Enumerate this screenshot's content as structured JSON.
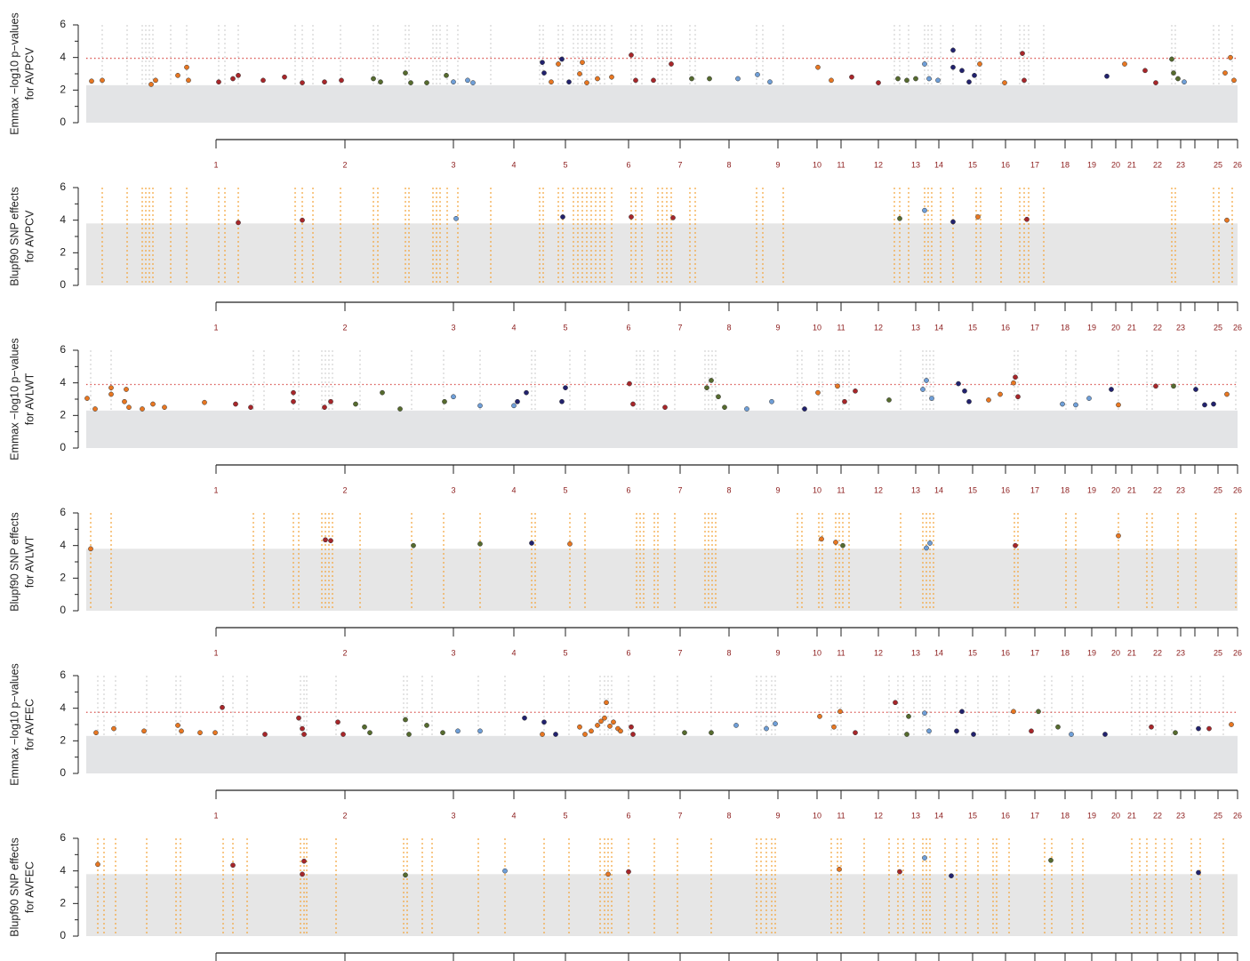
{
  "chromosome_axis": {
    "positions": [
      146,
      291,
      413,
      481,
      539,
      610,
      668,
      723,
      778,
      822,
      849,
      891,
      933,
      959,
      997,
      1034,
      1067,
      1101,
      1131,
      1158,
      1176,
      1205,
      1231,
      1247,
      1273,
      1295
    ],
    "labels": [
      "1",
      "2",
      "3",
      "4",
      "5",
      "6",
      "7",
      "8",
      "9",
      "10",
      "11",
      "12",
      "13",
      "14",
      "15",
      "16",
      "17",
      "18",
      "19",
      "20",
      "21",
      "22",
      "23",
      null,
      "25",
      "26"
    ]
  },
  "chart_data": [
    {
      "type": "scatter",
      "ylabel": [
        "Emmax −log10 p−values",
        "for AVPCV"
      ],
      "xlim": [
        0,
        1295
      ],
      "ylim": [
        0,
        6
      ],
      "yticks": [
        0,
        2,
        4,
        6
      ],
      "threshold": 3.95,
      "threshold_color": "#d9534f",
      "background_top": 2.3,
      "background_color": "#e3e4e6",
      "guide_color": "#cfcfcf",
      "series": [
        {
          "color": "#e87722",
          "x": [
            6,
            18,
            73,
            78,
            103,
            113,
            115,
            523,
            531,
            558,
            555,
            563,
            575,
            591,
            823,
            838,
            1005,
            1033,
            1168,
            1281,
            1287,
            1291
          ],
          "values": [
            2.55,
            2.6,
            2.35,
            2.6,
            2.9,
            3.4,
            2.6,
            2.5,
            3.6,
            3.7,
            3.0,
            2.45,
            2.7,
            2.8,
            3.4,
            2.6,
            3.6,
            2.45,
            3.6,
            3.05,
            4.0,
            2.6
          ]
        },
        {
          "color": "#a8262a",
          "x": [
            149,
            165,
            171,
            199,
            223,
            243,
            268,
            287,
            613,
            618,
            638,
            658,
            861,
            891,
            1053,
            1055,
            1191,
            1203
          ],
          "values": [
            2.5,
            2.7,
            2.9,
            2.6,
            2.8,
            2.45,
            2.5,
            2.6,
            4.15,
            2.6,
            2.6,
            3.6,
            2.8,
            2.45,
            4.25,
            2.6,
            3.2,
            2.45
          ]
        },
        {
          "color": "#566b2e",
          "x": [
            323,
            331,
            359,
            365,
            383,
            405,
            681,
            701,
            913,
            923,
            933,
            1223,
            1221,
            1228
          ],
          "values": [
            2.7,
            2.5,
            3.05,
            2.45,
            2.45,
            2.9,
            2.7,
            2.7,
            2.7,
            2.6,
            2.7,
            3.05,
            3.9,
            2.7
          ]
        },
        {
          "color": "#6f9fd8",
          "x": [
            413,
            429,
            435,
            733,
            755,
            769,
            943,
            948,
            958,
            1235
          ],
          "values": [
            2.5,
            2.6,
            2.45,
            2.7,
            2.95,
            2.5,
            3.6,
            2.7,
            2.6,
            2.5
          ]
        },
        {
          "color": "#22226e",
          "x": [
            513,
            515,
            535,
            543,
            975,
            975,
            985,
            993,
            999,
            1148
          ],
          "values": [
            3.7,
            3.05,
            3.9,
            2.5,
            4.45,
            3.4,
            3.2,
            2.5,
            2.9,
            2.85
          ]
        }
      ]
    },
    {
      "type": "scatter",
      "ylabel": [
        "Blupf90 SNP effects",
        "for AVPCV"
      ],
      "xlim": [
        0,
        1295
      ],
      "ylim": [
        0,
        6
      ],
      "yticks": [
        0,
        2,
        4,
        6
      ],
      "background_top": 3.8,
      "background_color": "#e6e6e6",
      "highlight_color": "#f2a33a",
      "highlight_x": [
        18,
        46,
        63,
        67,
        71,
        75,
        95,
        113,
        149,
        156,
        171,
        235,
        243,
        255,
        286,
        323,
        328,
        359,
        363,
        390,
        394,
        398,
        406,
        418,
        455,
        510,
        514,
        531,
        536,
        548,
        553,
        558,
        563,
        568,
        573,
        578,
        583,
        591,
        613,
        618,
        625,
        643,
        648,
        653,
        658,
        679,
        685,
        754,
        761,
        784,
        909,
        915,
        925,
        943,
        947,
        951,
        961,
        975,
        1001,
        1006,
        1029,
        1050,
        1055,
        1060,
        1077,
        1221,
        1225,
        1268,
        1274,
        1289
      ],
      "series": [
        {
          "color": "#e87722",
          "x": [
            1003,
            1283
          ],
          "values": [
            4.2,
            4.0
          ]
        },
        {
          "color": "#a8262a",
          "x": [
            171,
            243,
            613,
            660,
            1058
          ],
          "values": [
            3.85,
            4.0,
            4.2,
            4.15,
            4.05
          ]
        },
        {
          "color": "#566b2e",
          "x": [
            915
          ],
          "values": [
            4.1
          ]
        },
        {
          "color": "#6f9fd8",
          "x": [
            416,
            943
          ],
          "values": [
            4.1,
            4.6
          ]
        },
        {
          "color": "#22226e",
          "x": [
            536,
            975
          ],
          "values": [
            4.2,
            3.9
          ]
        }
      ]
    },
    {
      "type": "scatter",
      "ylabel": [
        "Emmax −log10 p−values",
        "for AVLWT"
      ],
      "xlim": [
        0,
        1295
      ],
      "ylim": [
        0,
        6
      ],
      "yticks": [
        0,
        2,
        4,
        6
      ],
      "threshold": 3.9,
      "threshold_color": "#d9534f",
      "background_top": 2.3,
      "background_color": "#e3e4e6",
      "guide_color": "#cfcfcf",
      "series": [
        {
          "color": "#e87722",
          "x": [
            1,
            10,
            28,
            28,
            43,
            45,
            48,
            63,
            75,
            88,
            133,
            823,
            845,
            1015,
            1028,
            1043,
            1161,
            1283
          ],
          "values": [
            3.05,
            2.4,
            3.7,
            3.3,
            2.85,
            3.6,
            2.5,
            2.4,
            2.7,
            2.5,
            2.8,
            3.4,
            3.8,
            2.95,
            3.3,
            4.0,
            2.65,
            3.3
          ]
        },
        {
          "color": "#a8262a",
          "x": [
            168,
            185,
            233,
            233,
            268,
            275,
            611,
            615,
            651,
            853,
            865,
            1045,
            1048,
            1203
          ],
          "values": [
            2.7,
            2.5,
            3.4,
            2.85,
            2.5,
            2.85,
            3.95,
            2.7,
            2.5,
            2.85,
            3.5,
            4.35,
            3.15,
            3.8
          ]
        },
        {
          "color": "#566b2e",
          "x": [
            303,
            333,
            353,
            403,
            698,
            703,
            711,
            718,
            903,
            1223
          ],
          "values": [
            2.7,
            3.4,
            2.4,
            2.85,
            3.7,
            4.15,
            3.15,
            2.5,
            2.95,
            3.8
          ]
        },
        {
          "color": "#6f9fd8",
          "x": [
            413,
            443,
            481,
            743,
            771,
            941,
            945,
            951,
            1098,
            1113,
            1128
          ],
          "values": [
            3.15,
            2.6,
            2.6,
            2.4,
            2.85,
            3.6,
            4.15,
            3.05,
            2.7,
            2.65,
            3.05
          ]
        },
        {
          "color": "#22226e",
          "x": [
            485,
            495,
            539,
            535,
            808,
            981,
            988,
            993,
            1153,
            1248,
            1258,
            1268
          ],
          "values": [
            2.85,
            3.4,
            3.7,
            2.85,
            2.4,
            3.95,
            3.5,
            2.85,
            3.6,
            3.6,
            2.65,
            2.7
          ]
        }
      ]
    },
    {
      "type": "scatter",
      "ylabel": [
        "Blupf90 SNP effects",
        "for AVLWT"
      ],
      "xlim": [
        0,
        1295
      ],
      "ylim": [
        0,
        6
      ],
      "yticks": [
        0,
        2,
        4,
        6
      ],
      "background_top": 3.8,
      "background_color": "#e6e6e6",
      "highlight_color": "#f2a33a",
      "highlight_x": [
        5,
        28,
        188,
        200,
        233,
        239,
        265,
        269,
        273,
        277,
        308,
        366,
        402,
        443,
        501,
        505,
        544,
        561,
        619,
        623,
        627,
        639,
        643,
        662,
        696,
        700,
        704,
        708,
        800,
        805,
        824,
        828,
        843,
        847,
        851,
        858,
        916,
        941,
        945,
        949,
        953,
        1044,
        1048,
        1102,
        1113,
        1161,
        1193,
        1199,
        1228,
        1248,
        1293
      ],
      "series": [
        {
          "color": "#e87722",
          "x": [
            5,
            544,
            827,
            843,
            1161
          ],
          "values": [
            3.8,
            4.1,
            4.4,
            4.2,
            4.6
          ]
        },
        {
          "color": "#a8262a",
          "x": [
            269,
            275,
            1045
          ],
          "values": [
            4.35,
            4.3,
            4.0
          ]
        },
        {
          "color": "#566b2e",
          "x": [
            368,
            443,
            851
          ],
          "values": [
            4.0,
            4.1,
            4.0
          ]
        },
        {
          "color": "#6f9fd8",
          "x": [
            949,
            945
          ],
          "values": [
            4.15,
            3.85
          ]
        },
        {
          "color": "#22226e",
          "x": [
            501
          ],
          "values": [
            4.15
          ]
        }
      ]
    },
    {
      "type": "scatter",
      "ylabel": [
        "Emmax −log10 p−values",
        "for AVFEC"
      ],
      "xlim": [
        0,
        1295
      ],
      "ylim": [
        0,
        6
      ],
      "yticks": [
        0,
        2,
        4,
        6
      ],
      "threshold": 3.75,
      "threshold_color": "#d9534f",
      "background_top": 2.3,
      "background_color": "#e3e4e6",
      "guide_color": "#cfcfcf",
      "series": [
        {
          "color": "#e87722",
          "x": [
            11,
            31,
            65,
            103,
            107,
            128,
            145,
            513,
            555,
            561,
            575,
            583,
            585,
            593,
            598,
            825,
            841,
            848,
            1043,
            1288,
            568,
            579,
            589,
            601
          ],
          "values": [
            2.5,
            2.75,
            2.6,
            2.95,
            2.6,
            2.5,
            2.5,
            2.4,
            2.85,
            2.4,
            2.95,
            3.4,
            4.35,
            3.15,
            2.75,
            3.5,
            2.85,
            3.8,
            3.8,
            3.0,
            2.6,
            3.2,
            2.9,
            2.6
          ]
        },
        {
          "color": "#a8262a",
          "x": [
            153,
            201,
            239,
            243,
            245,
            283,
            289,
            613,
            615,
            865,
            910,
            1063,
            1198,
            1263
          ],
          "values": [
            4.05,
            2.4,
            3.4,
            2.75,
            2.4,
            3.15,
            2.4,
            2.85,
            2.4,
            2.5,
            4.35,
            2.6,
            2.85,
            2.75
          ]
        },
        {
          "color": "#566b2e",
          "x": [
            313,
            319,
            359,
            363,
            383,
            401,
            673,
            703,
            925,
            923,
            1071,
            1093,
            1225
          ],
          "values": [
            2.85,
            2.5,
            3.3,
            2.4,
            2.95,
            2.5,
            2.5,
            2.5,
            3.5,
            2.4,
            3.8,
            2.85,
            2.5
          ]
        },
        {
          "color": "#6f9fd8",
          "x": [
            418,
            443,
            731,
            765,
            775,
            943,
            948,
            1108
          ],
          "values": [
            2.6,
            2.6,
            2.95,
            2.75,
            3.05,
            3.7,
            2.6,
            2.4
          ]
        },
        {
          "color": "#22226e",
          "x": [
            493,
            515,
            528,
            979,
            985,
            998,
            1146,
            1251
          ],
          "values": [
            3.4,
            3.15,
            2.4,
            2.6,
            3.8,
            2.4,
            2.4,
            2.75
          ]
        }
      ]
    },
    {
      "type": "scatter",
      "ylabel": [
        "Blupf90 SNP effects",
        "for AVFEC"
      ],
      "xlim": [
        0,
        1295
      ],
      "ylim": [
        0,
        6
      ],
      "yticks": [
        0,
        2,
        4,
        6
      ],
      "background_top": 3.8,
      "background_color": "#e6e6e6",
      "highlight_color": "#f2a33a",
      "highlight_x": [
        13,
        20,
        33,
        68,
        101,
        106,
        154,
        165,
        181,
        241,
        245,
        248,
        281,
        357,
        361,
        378,
        389,
        441,
        471,
        515,
        543,
        578,
        583,
        587,
        591,
        610,
        639,
        665,
        703,
        754,
        759,
        765,
        771,
        775,
        838,
        845,
        849,
        875,
        903,
        913,
        919,
        931,
        941,
        945,
        949,
        966,
        979,
        989,
        1003,
        1020,
        1024,
        1038,
        1078,
        1086,
        1109,
        1121,
        1176,
        1185,
        1193,
        1203,
        1213,
        1221,
        1243,
        1253,
        1279
      ],
      "series": [
        {
          "color": "#e87722",
          "x": [
            13,
            587,
            847
          ],
          "values": [
            4.4,
            3.8,
            4.1
          ]
        },
        {
          "color": "#a8262a",
          "x": [
            165,
            245,
            243,
            610,
            915
          ],
          "values": [
            4.35,
            4.6,
            3.8,
            3.95,
            3.95
          ]
        },
        {
          "color": "#566b2e",
          "x": [
            359,
            1085
          ],
          "values": [
            3.75,
            4.65
          ]
        },
        {
          "color": "#6f9fd8",
          "x": [
            471,
            943
          ],
          "values": [
            4.0,
            4.8
          ]
        },
        {
          "color": "#22226e",
          "x": [
            973,
            1251
          ],
          "values": [
            3.7,
            3.9
          ]
        }
      ]
    }
  ]
}
